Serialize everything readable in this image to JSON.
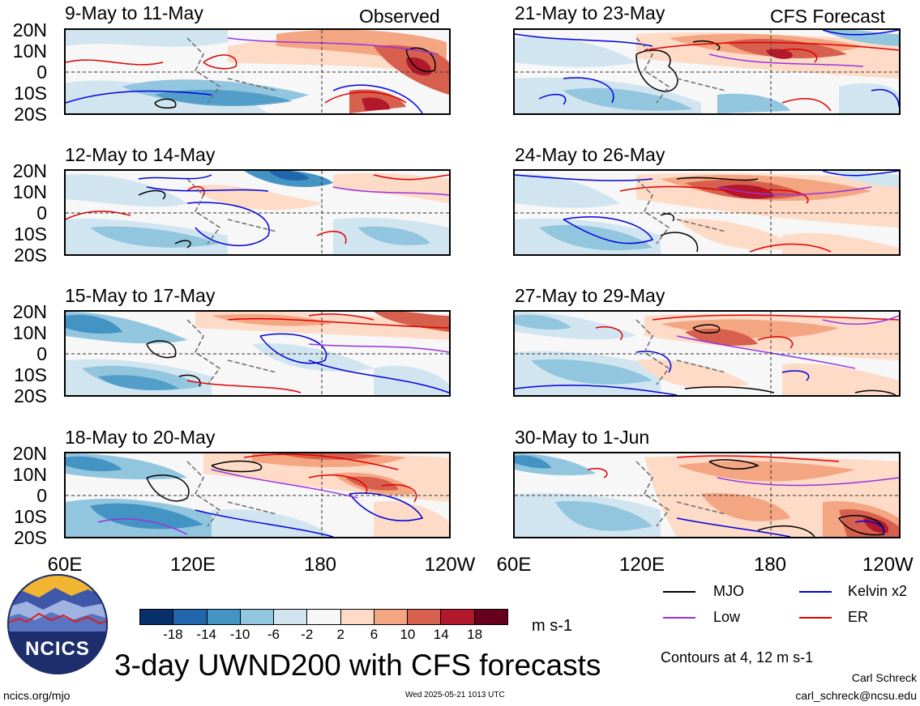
{
  "header": {
    "left_title": "Observed",
    "right_title": "CFS Forecast"
  },
  "panels": [
    {
      "label": "9-May to 11-May"
    },
    {
      "label": "12-May to 14-May"
    },
    {
      "label": "15-May to 17-May"
    },
    {
      "label": "18-May to 20-May"
    },
    {
      "label": "21-May to 23-May"
    },
    {
      "label": "24-May to 26-May"
    },
    {
      "label": "27-May to 29-May"
    },
    {
      "label": "30-May to 1-Jun"
    }
  ],
  "y_ticks": [
    "20N",
    "10N",
    "0",
    "10S",
    "20S"
  ],
  "x_ticks": [
    "60E",
    "120E",
    "180",
    "120W"
  ],
  "colorbar": {
    "ticks": [
      "-18",
      "-14",
      "-10",
      "-6",
      "-2",
      "2",
      "6",
      "10",
      "14",
      "18"
    ],
    "colors": [
      "#08306b",
      "#2166ac",
      "#4393c3",
      "#92c5de",
      "#d1e5f0",
      "#f7f7f7",
      "#fddbc7",
      "#f4a582",
      "#d6604d",
      "#b2182b",
      "#67001f"
    ],
    "units": "m s-1"
  },
  "legend": {
    "items": [
      {
        "label": "MJO",
        "color": "#000000"
      },
      {
        "label": "Kelvin x2",
        "color": "#0000dd"
      },
      {
        "label": "Low",
        "color": "#9a32e0"
      },
      {
        "label": "ER",
        "color": "#e00000"
      }
    ],
    "note": "Contours at 4, 12 m s-1"
  },
  "logo": {
    "text": "NCICS"
  },
  "footer": {
    "title": "3-day UWND200 with CFS forecasts",
    "url": "ncics.org/mjo",
    "timestamp": "Wed 2025-05-21 1013 UTC",
    "author": "Carl Schreck",
    "email": "carl_schreck@ncsu.edu"
  },
  "chart_data": {
    "type": "heatmap",
    "title": "3-day UWND200 with CFS forecasts",
    "variable": "200-hPa zonal wind anomaly",
    "units": "m s-1",
    "x_range": [
      "60E",
      "120W"
    ],
    "y_range": [
      "20S",
      "20N"
    ],
    "contour_levels": [
      4,
      12
    ],
    "panels": [
      {
        "label": "9-May to 11-May",
        "source": "Observed"
      },
      {
        "label": "12-May to 14-May",
        "source": "Observed"
      },
      {
        "label": "15-May to 17-May",
        "source": "Observed"
      },
      {
        "label": "18-May to 20-May",
        "source": "Observed"
      },
      {
        "label": "21-May to 23-May",
        "source": "CFS Forecast"
      },
      {
        "label": "24-May to 26-May",
        "source": "CFS Forecast"
      },
      {
        "label": "27-May to 29-May",
        "source": "CFS Forecast"
      },
      {
        "label": "30-May to 1-Jun",
        "source": "CFS Forecast"
      }
    ]
  }
}
